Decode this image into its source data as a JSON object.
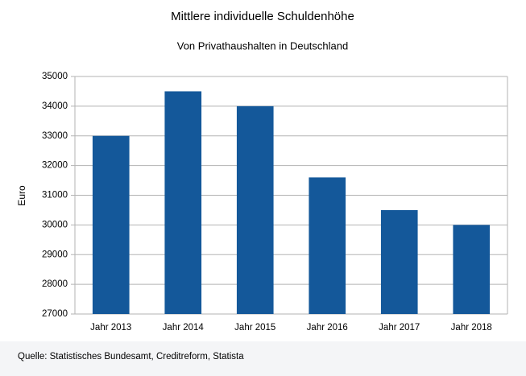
{
  "chart_data": {
    "type": "bar",
    "title": "Mittlere individuelle Schuldenhöhe",
    "subtitle": "Von Privathaushalten in Deutschland",
    "y_label": "Euro",
    "source": "Quelle: Statistisches Bundesamt, Creditreform, Statista",
    "categories": [
      "Jahr 2013",
      "Jahr 2014",
      "Jahr 2015",
      "Jahr 2016",
      "Jahr 2017",
      "Jahr 2018"
    ],
    "values": [
      33000,
      34500,
      34000,
      31600,
      30500,
      30000
    ],
    "color": "#14589a",
    "ylim": [
      27000,
      35000
    ],
    "yticks": [
      27000,
      28000,
      29000,
      30000,
      31000,
      32000,
      33000,
      34000,
      35000
    ],
    "grid": true
  }
}
